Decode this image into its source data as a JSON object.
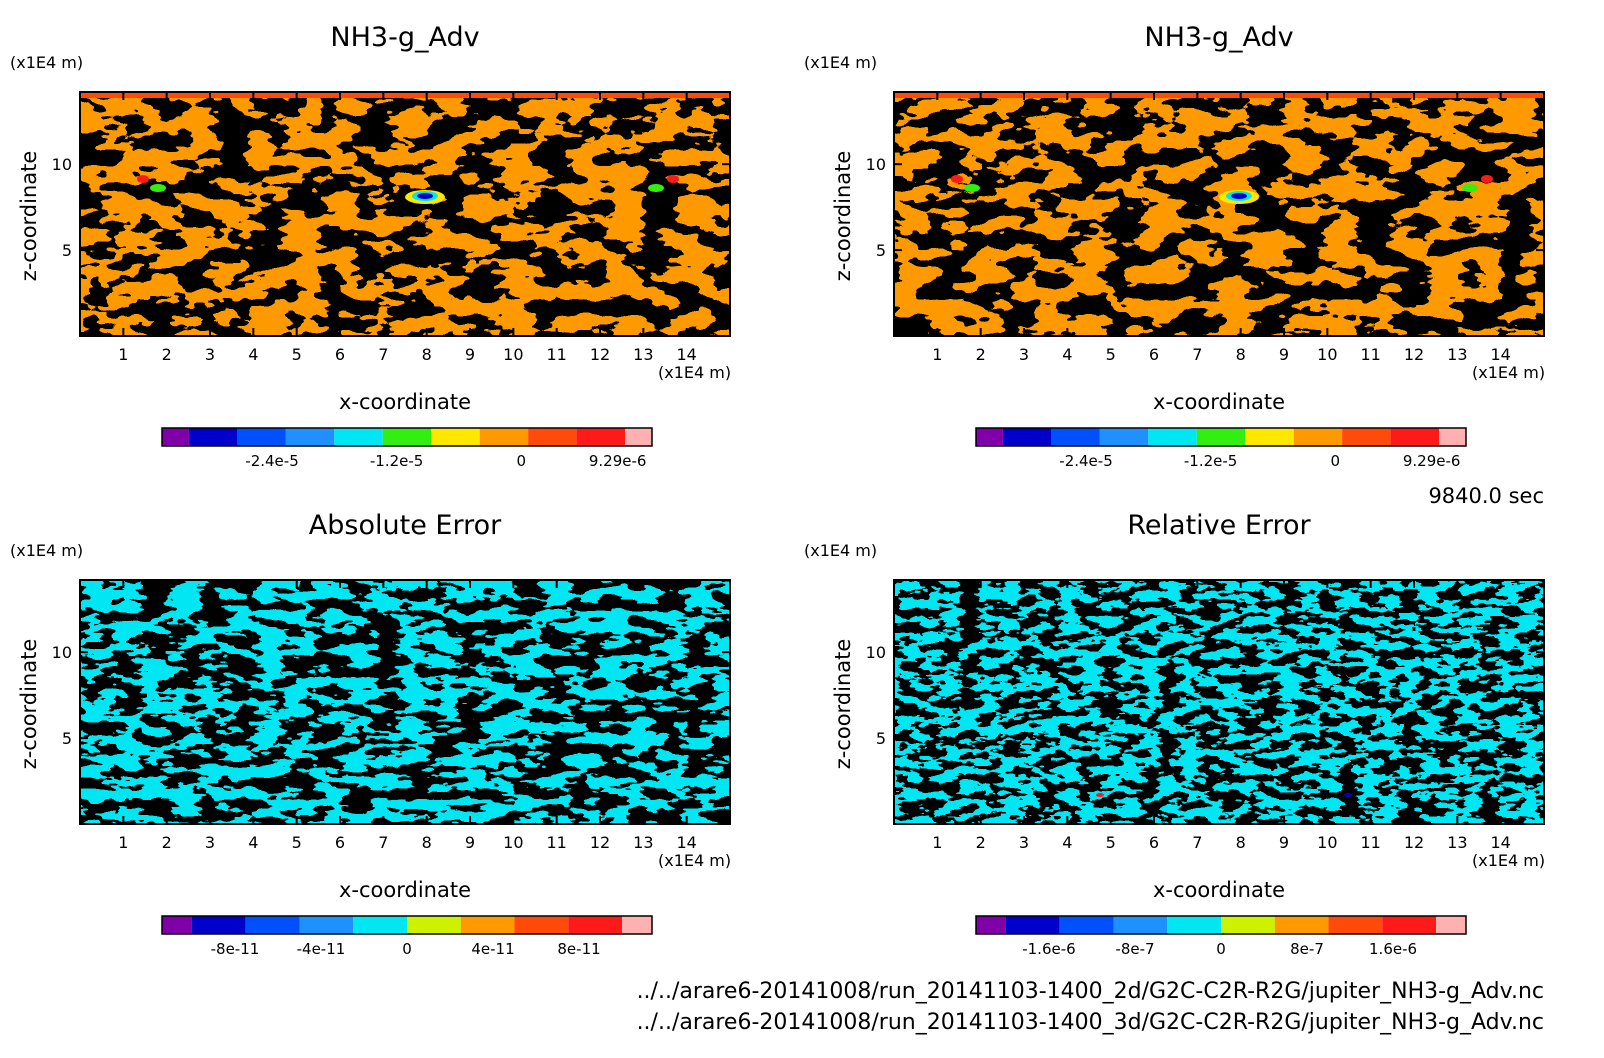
{
  "time_label": "9840.0 sec",
  "footer": {
    "file1": "../../arare6-20141008/run_20141103-1400_2d/G2C-C2R-R2G/jupiter_NH3-g_Adv.nc",
    "file2": "../../arare6-20141008/run_20141103-1400_3d/G2C-C2R-R2G/jupiter_NH3-g_Adv.nc"
  },
  "colors": {
    "frame": "#000000",
    "nh3_palette": [
      "#7f00a9",
      "#0000cc",
      "#0050ff",
      "#1e90ff",
      "#00e6f2",
      "#33ee11",
      "#ffe800",
      "#ff9900",
      "#ff4a0a",
      "#ff1a1a",
      "#ffb0b0"
    ],
    "err_palette": [
      "#7f00a9",
      "#0000cc",
      "#0050ff",
      "#1e90ff",
      "#00e6f2",
      "#ccf200",
      "#ff9900",
      "#ff4a0a",
      "#ff1a1a",
      "#ffb0b0"
    ]
  },
  "chart_data": [
    {
      "type": "heatmap",
      "title": "NH3-g_Adv",
      "xlabel": "x-coordinate",
      "ylabel": "z-coordinate",
      "x_unit": "(x1E4 m)",
      "y_unit": "(x1E4 m)",
      "xlim": [
        0,
        15
      ],
      "ylim": [
        0,
        14.2
      ],
      "xticks": [
        "1",
        "2",
        "3",
        "4",
        "5",
        "6",
        "7",
        "8",
        "9",
        "10",
        "11",
        "12",
        "13",
        "14"
      ],
      "yticks": [
        "5",
        "10"
      ],
      "dominant_values": [
        0,
        3e-06
      ],
      "colorbar": {
        "min": -3.2e-05,
        "max": 1e-05,
        "labels": [
          "-2.4e-5",
          "-1.2e-5",
          "0",
          "9.29e-6"
        ],
        "label_values": [
          -2.4e-05,
          -1.2e-05,
          0,
          9.29e-06
        ]
      }
    },
    {
      "type": "heatmap",
      "title": "NH3-g_Adv",
      "xlabel": "x-coordinate",
      "ylabel": "z-coordinate",
      "x_unit": "(x1E4 m)",
      "y_unit": "(x1E4 m)",
      "xlim": [
        0,
        15
      ],
      "ylim": [
        0,
        14.2
      ],
      "xticks": [
        "1",
        "2",
        "3",
        "4",
        "5",
        "6",
        "7",
        "8",
        "9",
        "10",
        "11",
        "12",
        "13",
        "14"
      ],
      "yticks": [
        "5",
        "10"
      ],
      "dominant_values": [
        0,
        3e-06
      ],
      "colorbar": {
        "min": -3.2e-05,
        "max": 1e-05,
        "labels": [
          "-2.4e-5",
          "-1.2e-5",
          "0",
          "9.29e-6"
        ],
        "label_values": [
          -2.4e-05,
          -1.2e-05,
          0,
          9.29e-06
        ]
      }
    },
    {
      "type": "heatmap",
      "title": "Absolute Error",
      "xlabel": "x-coordinate",
      "ylabel": "z-coordinate",
      "x_unit": "(x1E4 m)",
      "y_unit": "(x1E4 m)",
      "xlim": [
        0,
        15
      ],
      "ylim": [
        0,
        14.2
      ],
      "xticks": [
        "1",
        "2",
        "3",
        "4",
        "5",
        "6",
        "7",
        "8",
        "9",
        "10",
        "11",
        "12",
        "13",
        "14"
      ],
      "yticks": [
        "5",
        "10"
      ],
      "dominant_values": [
        -1e-11,
        1e-11
      ],
      "colorbar": {
        "min": -1e-10,
        "max": 1e-10,
        "labels": [
          "-8e-11",
          "-4e-11",
          "0",
          "4e-11",
          "8e-11"
        ],
        "label_values": [
          -8e-11,
          -4e-11,
          0,
          4e-11,
          8e-11
        ]
      }
    },
    {
      "type": "heatmap",
      "title": "Relative Error",
      "xlabel": "x-coordinate",
      "ylabel": "z-coordinate",
      "x_unit": "(x1E4 m)",
      "y_unit": "(x1E4 m)",
      "xlim": [
        0,
        15
      ],
      "ylim": [
        0,
        14.2
      ],
      "xticks": [
        "1",
        "2",
        "3",
        "4",
        "5",
        "6",
        "7",
        "8",
        "9",
        "10",
        "11",
        "12",
        "13",
        "14"
      ],
      "yticks": [
        "5",
        "10"
      ],
      "dominant_values": [
        -2e-07,
        2e-07
      ],
      "colorbar": {
        "min": -2e-06,
        "max": 2e-06,
        "labels": [
          "-1.6e-6",
          "-8e-7",
          "0",
          "8e-7",
          "1.6e-6"
        ],
        "label_values": [
          -1.6e-06,
          -8e-07,
          0,
          8e-07,
          1.6e-06
        ]
      }
    }
  ]
}
